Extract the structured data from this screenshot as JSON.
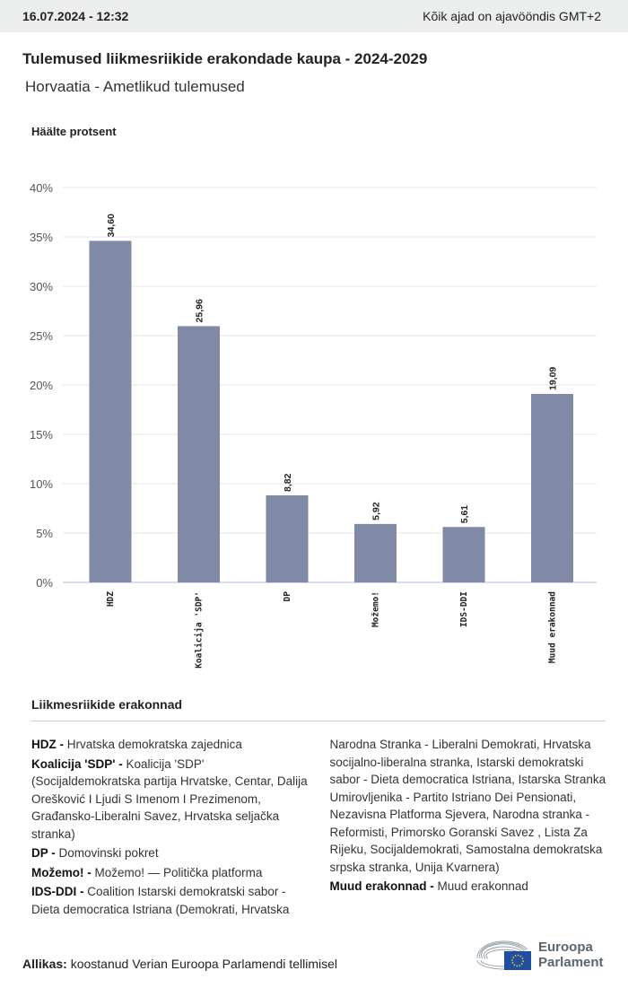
{
  "header": {
    "timestamp": "16.07.2024 - 12:32",
    "timezone_note": "Kõik ajad on ajavööndis GMT+2"
  },
  "title": "Tulemused liikmesriikide erakondade kaupa - 2024-2029",
  "subtitle": "Horvaatia - Ametlikud tulemused",
  "chart_data": {
    "type": "bar",
    "ylabel": "Häälte protsent",
    "categories": [
      "HDZ",
      "Koalicija 'SDP'",
      "DP",
      "Možemo!",
      "IDS-DDI",
      "Muud erakonnad"
    ],
    "values": [
      34.6,
      25.96,
      8.82,
      5.92,
      5.61,
      19.09
    ],
    "value_labels": [
      "34,60",
      "25,96",
      "8,82",
      "5,92",
      "5,61",
      "19,09"
    ],
    "ylim": [
      0,
      40
    ],
    "yticks": [
      "0%",
      "5%",
      "10%",
      "15%",
      "20%",
      "25%",
      "30%",
      "35%",
      "40%"
    ],
    "grid": true,
    "bar_color": "#8089a6"
  },
  "legend": {
    "title": "Liikmesriikide erakonnad",
    "items": [
      {
        "abbr": "HDZ -",
        "name": "Hrvatska demokratska zajednica"
      },
      {
        "abbr": "Koalicija 'SDP' -",
        "name": "Koalicija 'SDP' (Socijaldemokratska partija Hrvatske, Centar, Dalija Orešković I Ljudi S Imenom I Prezimenom, Građansko-Liberalni Savez, Hrvatska seljačka stranka)"
      },
      {
        "abbr": "DP -",
        "name": "Domovinski pokret"
      },
      {
        "abbr": "Možemo! -",
        "name": "Možemo! — Politička platforma"
      },
      {
        "abbr": "IDS-DDI -",
        "name": "Coalition Istarski demokratski sabor - Dieta democratica Istriana (Demokrati, Hrvatska Narodna Stranka - Liberalni Demokrati, Hrvatska socijalno-liberalna stranka, Istarski demokratski sabor - Dieta democratica Istriana, Istarska Stranka Umirovljenika - Partito Istriano Dei Pensionati, Nezavisna Platforma Sjevera, Narodna stranka - Reformisti, Primorsko Goranski Savez , Lista Za Rijeku, Socijaldemokrati, Samostalna demokratska srpska stranka, Unija Kvarnera)"
      },
      {
        "abbr": "Muud erakonnad -",
        "name": "Muud erakonnad"
      }
    ]
  },
  "footer": {
    "source_label": "Allikas:",
    "source_text": "koostanud Verian Euroopa Parlamendi tellimisel",
    "logo_line1": "Euroopa",
    "logo_line2": "Parlament"
  }
}
